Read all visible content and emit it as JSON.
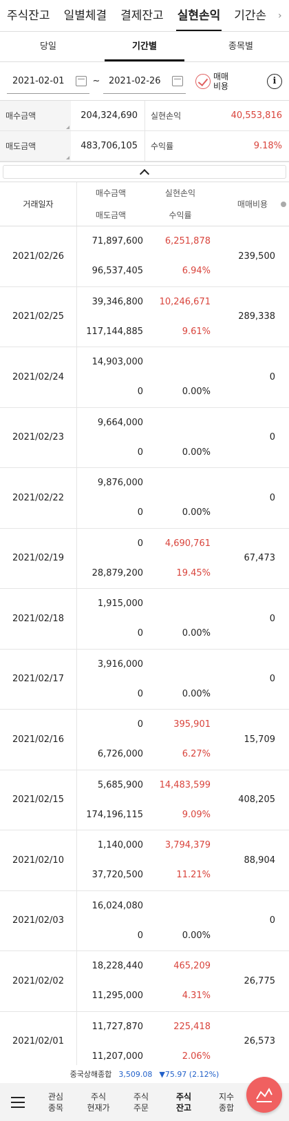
{
  "top_tabs": [
    "주식잔고",
    "일별체결",
    "결제잔고",
    "실현손익",
    "기간손"
  ],
  "sub_tabs": [
    "당일",
    "기간별",
    "종목별"
  ],
  "date_from": "2021-02-01",
  "date_to": "2021-02-26",
  "tilde": "~",
  "cost_label": "매매\n비용",
  "info_symbol": "i",
  "summary": {
    "buy_label": "매수금액",
    "buy_value": "204,324,690",
    "realized_label": "실현손익",
    "realized_value": "40,553,816",
    "sell_label": "매도금액",
    "sell_value": "483,706,105",
    "return_label": "수익률",
    "return_value": "9.18%"
  },
  "headers": {
    "date": "거래일자",
    "buy": "매수금액",
    "sell": "매도금액",
    "realized": "실현손익",
    "return": "수익률",
    "cost": "매매비용"
  },
  "rows": [
    {
      "date": "2021/02/26",
      "buy": "71,897,600",
      "sell": "96,537,405",
      "realized": "6,251,878",
      "return": "6.94%",
      "cost": "239,500",
      "red": true
    },
    {
      "date": "2021/02/25",
      "buy": "39,346,800",
      "sell": "117,144,885",
      "realized": "10,246,671",
      "return": "9.61%",
      "cost": "289,338",
      "red": true
    },
    {
      "date": "2021/02/24",
      "buy": "14,903,000",
      "sell": "0",
      "realized": "",
      "return": "0.00%",
      "cost": "0",
      "red": false
    },
    {
      "date": "2021/02/23",
      "buy": "9,664,000",
      "sell": "0",
      "realized": "",
      "return": "0.00%",
      "cost": "0",
      "red": false
    },
    {
      "date": "2021/02/22",
      "buy": "9,876,000",
      "sell": "0",
      "realized": "",
      "return": "0.00%",
      "cost": "0",
      "red": false
    },
    {
      "date": "2021/02/19",
      "buy": "0",
      "sell": "28,879,200",
      "realized": "4,690,761",
      "return": "19.45%",
      "cost": "67,473",
      "red": true
    },
    {
      "date": "2021/02/18",
      "buy": "1,915,000",
      "sell": "0",
      "realized": "",
      "return": "0.00%",
      "cost": "0",
      "red": false
    },
    {
      "date": "2021/02/17",
      "buy": "3,916,000",
      "sell": "0",
      "realized": "",
      "return": "0.00%",
      "cost": "0",
      "red": false
    },
    {
      "date": "2021/02/16",
      "buy": "0",
      "sell": "6,726,000",
      "realized": "395,901",
      "return": "6.27%",
      "cost": "15,709",
      "red": true
    },
    {
      "date": "2021/02/15",
      "buy": "5,685,900",
      "sell": "174,196,115",
      "realized": "14,483,599",
      "return": "9.09%",
      "cost": "408,205",
      "red": true
    },
    {
      "date": "2021/02/10",
      "buy": "1,140,000",
      "sell": "37,720,500",
      "realized": "3,794,379",
      "return": "11.21%",
      "cost": "88,904",
      "red": true
    },
    {
      "date": "2021/02/03",
      "buy": "16,024,080",
      "sell": "0",
      "realized": "",
      "return": "0.00%",
      "cost": "0",
      "red": false
    },
    {
      "date": "2021/02/02",
      "buy": "18,228,440",
      "sell": "11,295,000",
      "realized": "465,209",
      "return": "4.31%",
      "cost": "26,775",
      "red": true
    },
    {
      "date": "2021/02/01",
      "buy": "11,727,870",
      "sell": "11,207,000",
      "realized": "225,418",
      "return": "2.06%",
      "cost": "26,573",
      "red": true
    }
  ],
  "ticker": {
    "name": "중국상해종합",
    "value": "3,509.08",
    "change": "▼75.97 (2.12%)"
  },
  "bottom_nav": [
    "관심\n종목",
    "주식\n현재가",
    "주식\n주문",
    "주식\n잔고",
    "지수\n종합"
  ],
  "colors": {
    "red": "#d9443c",
    "blue": "#2160c9",
    "fab": "#f06060"
  },
  "icons": [
    "menu-icon",
    "calendar-icon",
    "check-circle-icon",
    "info-icon",
    "chevron-up-icon",
    "chart-icon"
  ]
}
